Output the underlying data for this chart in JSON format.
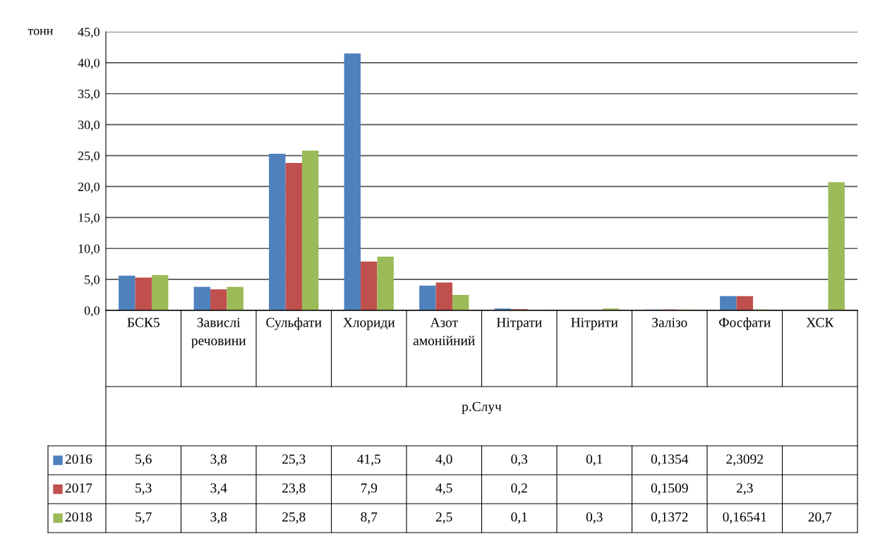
{
  "chart_data": {
    "type": "bar",
    "ylabel": "тонн",
    "xlabel": "р.Случ",
    "categories": [
      "БСК5",
      "Завислі речовини",
      "Сульфати",
      "Хлориди",
      "Азот амонійний",
      "Нітрати",
      "Нітрити",
      "Залізо",
      "Фосфати",
      "ХСК"
    ],
    "series": [
      {
        "name": "2016",
        "color": "#4f81bd",
        "values": [
          5.6,
          3.8,
          25.3,
          41.5,
          4.0,
          0.3,
          0.1,
          0.1354,
          2.3092,
          null
        ],
        "value_labels": [
          "5,6",
          "3,8",
          "25,3",
          "41,5",
          "4,0",
          "0,3",
          "0,1",
          "0,1354",
          "2,3092",
          null
        ]
      },
      {
        "name": "2017",
        "color": "#c0504d",
        "values": [
          5.3,
          3.4,
          23.8,
          7.9,
          4.5,
          0.2,
          null,
          0.1509,
          2.3,
          null
        ],
        "value_labels": [
          "5,3",
          "3,4",
          "23,8",
          "7,9",
          "4,5",
          "0,2",
          null,
          "0,1509",
          "2,3",
          null
        ]
      },
      {
        "name": "2018",
        "color": "#9bbb59",
        "values": [
          5.7,
          3.8,
          25.8,
          8.7,
          2.5,
          0.1,
          0.3,
          0.1372,
          0.16541,
          20.7
        ],
        "value_labels": [
          "5,7",
          "3,8",
          "25,8",
          "8,7",
          "2,5",
          "0,1",
          "0,3",
          "0,1372",
          "0,16541",
          "20,7"
        ]
      }
    ],
    "ylim": [
      0,
      45
    ],
    "yticks": [
      {
        "value": 0,
        "label": "0,0"
      },
      {
        "value": 5,
        "label": "5,0"
      },
      {
        "value": 10,
        "label": "10,0"
      },
      {
        "value": 15,
        "label": "15,0"
      },
      {
        "value": 20,
        "label": "20,0"
      },
      {
        "value": 25,
        "label": "25,0"
      },
      {
        "value": 30,
        "label": "30,0"
      },
      {
        "value": 35,
        "label": "35,0"
      },
      {
        "value": 40,
        "label": "40,0"
      },
      {
        "value": 45,
        "label": "45,0"
      }
    ],
    "grid": "y",
    "legend": "bottom"
  }
}
